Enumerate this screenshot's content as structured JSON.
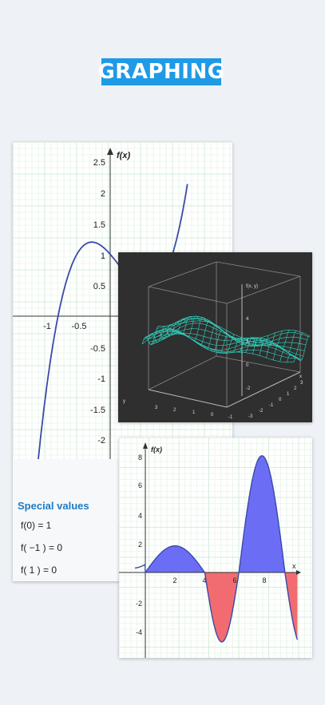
{
  "banner": {
    "title": "GRAPHING"
  },
  "graph1": {
    "y_label": "f(x)",
    "y_ticks": [
      "2.5",
      "2",
      "1.5",
      "1",
      "0.5",
      "-0.5",
      "-1",
      "-1.5",
      "-2"
    ],
    "x_ticks": [
      "-1",
      "-0.5"
    ]
  },
  "special_values": {
    "title": "Special values",
    "items": [
      "f(0) = 1",
      "f( −1 ) = 0",
      "f( 1 ) = 0"
    ]
  },
  "graph3d": {
    "z_label": "f(x, y)",
    "z_ticks": [
      "4",
      "2",
      "0",
      "-2"
    ],
    "y_ticks": [
      "3",
      "2",
      "1",
      "0",
      "-1"
    ],
    "x_ticks": [
      "-3",
      "-2",
      "-1",
      "0",
      "1",
      "2",
      "3"
    ],
    "y_axis": "y",
    "x_axis": "x"
  },
  "graph2": {
    "y_label": "f(x)",
    "y_ticks": [
      "8",
      "6",
      "4",
      "2",
      "-2",
      "-4"
    ],
    "x_ticks": [
      "2",
      "4",
      "6",
      "8"
    ],
    "x_axis": "x"
  },
  "colors": {
    "accent": "#1f9ae6",
    "curve": "#3a4aa8",
    "positive_area": "#6b6ef5",
    "negative_area": "#f26b70",
    "mesh": "#2fd6c0"
  }
}
